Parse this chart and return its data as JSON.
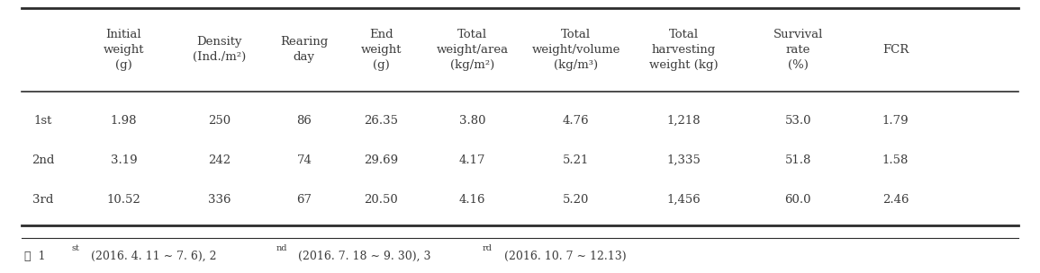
{
  "col_headers": [
    "",
    "Initial\nweight\n(g)",
    "Density\n(Ind./m²)",
    "Rearing\nday",
    "End\nweight\n(g)",
    "Total\nweight/area\n(kg/m²)",
    "Total\nweight/volume\n(kg/m³)",
    "Total\nharvesting\nweight (kg)",
    "Survival\nrate\n(%)",
    "FCR"
  ],
  "rows": [
    [
      "1st",
      "1.98",
      "250",
      "86",
      "26.35",
      "3.80",
      "4.76",
      "1,218",
      "53.0",
      "1.79"
    ],
    [
      "2nd",
      "3.19",
      "242",
      "74",
      "29.69",
      "4.17",
      "5.21",
      "1,335",
      "51.8",
      "1.58"
    ],
    [
      "3rd",
      "10.52",
      "336",
      "67",
      "20.50",
      "4.16",
      "5.20",
      "1,456",
      "60.0",
      "2.46"
    ]
  ],
  "footnote": "※  1st (2016. 4. 11 ~ 7. 6), 2nd (2016. 7. 18 ~ 9. 30), 3rd (2016. 10. 7 ~ 12.13)",
  "footnote_superscripts": [
    {
      "text": "st",
      "after": "1"
    },
    {
      "text": "nd",
      "after": "2"
    },
    {
      "text": "rd",
      "after": "3"
    }
  ],
  "background_color": "#ffffff",
  "text_color": "#3c3c3c",
  "font_size": 9.5,
  "header_font_size": 9.5
}
